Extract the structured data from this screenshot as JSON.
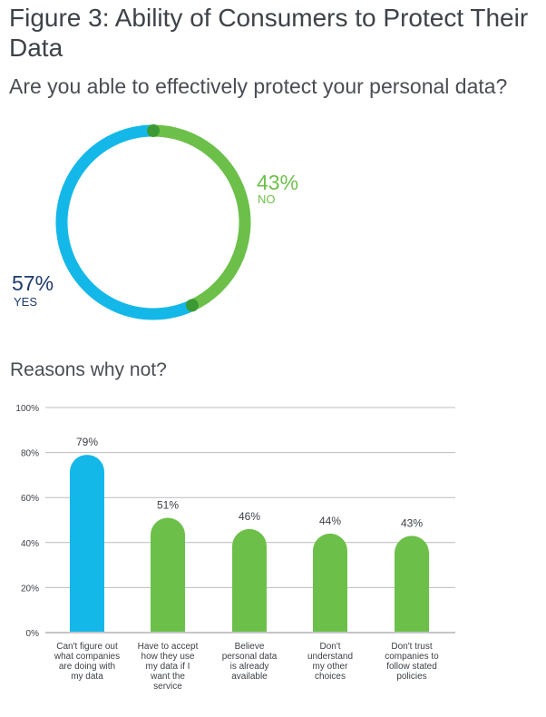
{
  "header": {
    "title": "Figure 3: Ability of Consumers to Protect Their Data",
    "subtitle": "Are you able to effectively protect your personal data?"
  },
  "donut": {
    "yes": {
      "value": 57,
      "pct_text": "57%",
      "label": "YES",
      "color": "#14b8e8"
    },
    "no": {
      "value": 43,
      "pct_text": "43%",
      "label": "NO",
      "color": "#6cc04a"
    },
    "marker_color": "#3c9a34"
  },
  "section_title": "Reasons why not?",
  "chart_data": [
    {
      "type": "pie",
      "categories": [
        "YES",
        "NO"
      ],
      "values": [
        57,
        43
      ],
      "title": "Are you able to effectively protect your personal data?"
    },
    {
      "type": "bar",
      "title": "Reasons why not?",
      "categories": [
        "Can't figure out what companies are doing with my data",
        "Have to accept how they use my data if I want the service",
        "Believe personal data is already available",
        "Don't understand my other choices",
        "Don't trust companies to follow stated policies"
      ],
      "values": [
        79,
        51,
        46,
        44,
        43
      ],
      "value_labels": [
        "79%",
        "51%",
        "46%",
        "44%",
        "43%"
      ],
      "colors": [
        "#14b8e8",
        "#6cc04a",
        "#6cc04a",
        "#6cc04a",
        "#6cc04a"
      ],
      "ylim": [
        0,
        100
      ],
      "yticks": [
        0,
        20,
        40,
        60,
        80,
        100
      ],
      "ytick_labels": [
        "0%",
        "20%",
        "40%",
        "60%",
        "80%",
        "100%"
      ],
      "grid": true
    }
  ],
  "bar_labels": [
    "Can't figure out\nwhat companies\nare doing with\nmy data",
    "Have to accept\nhow they use\nmy data if I\nwant the\nservice",
    "Believe\npersonal data\nis already\navailable",
    "Don't\nunderstand\nmy other\nchoices",
    "Don't trust\ncompanies to\nfollow stated\npolicies"
  ]
}
